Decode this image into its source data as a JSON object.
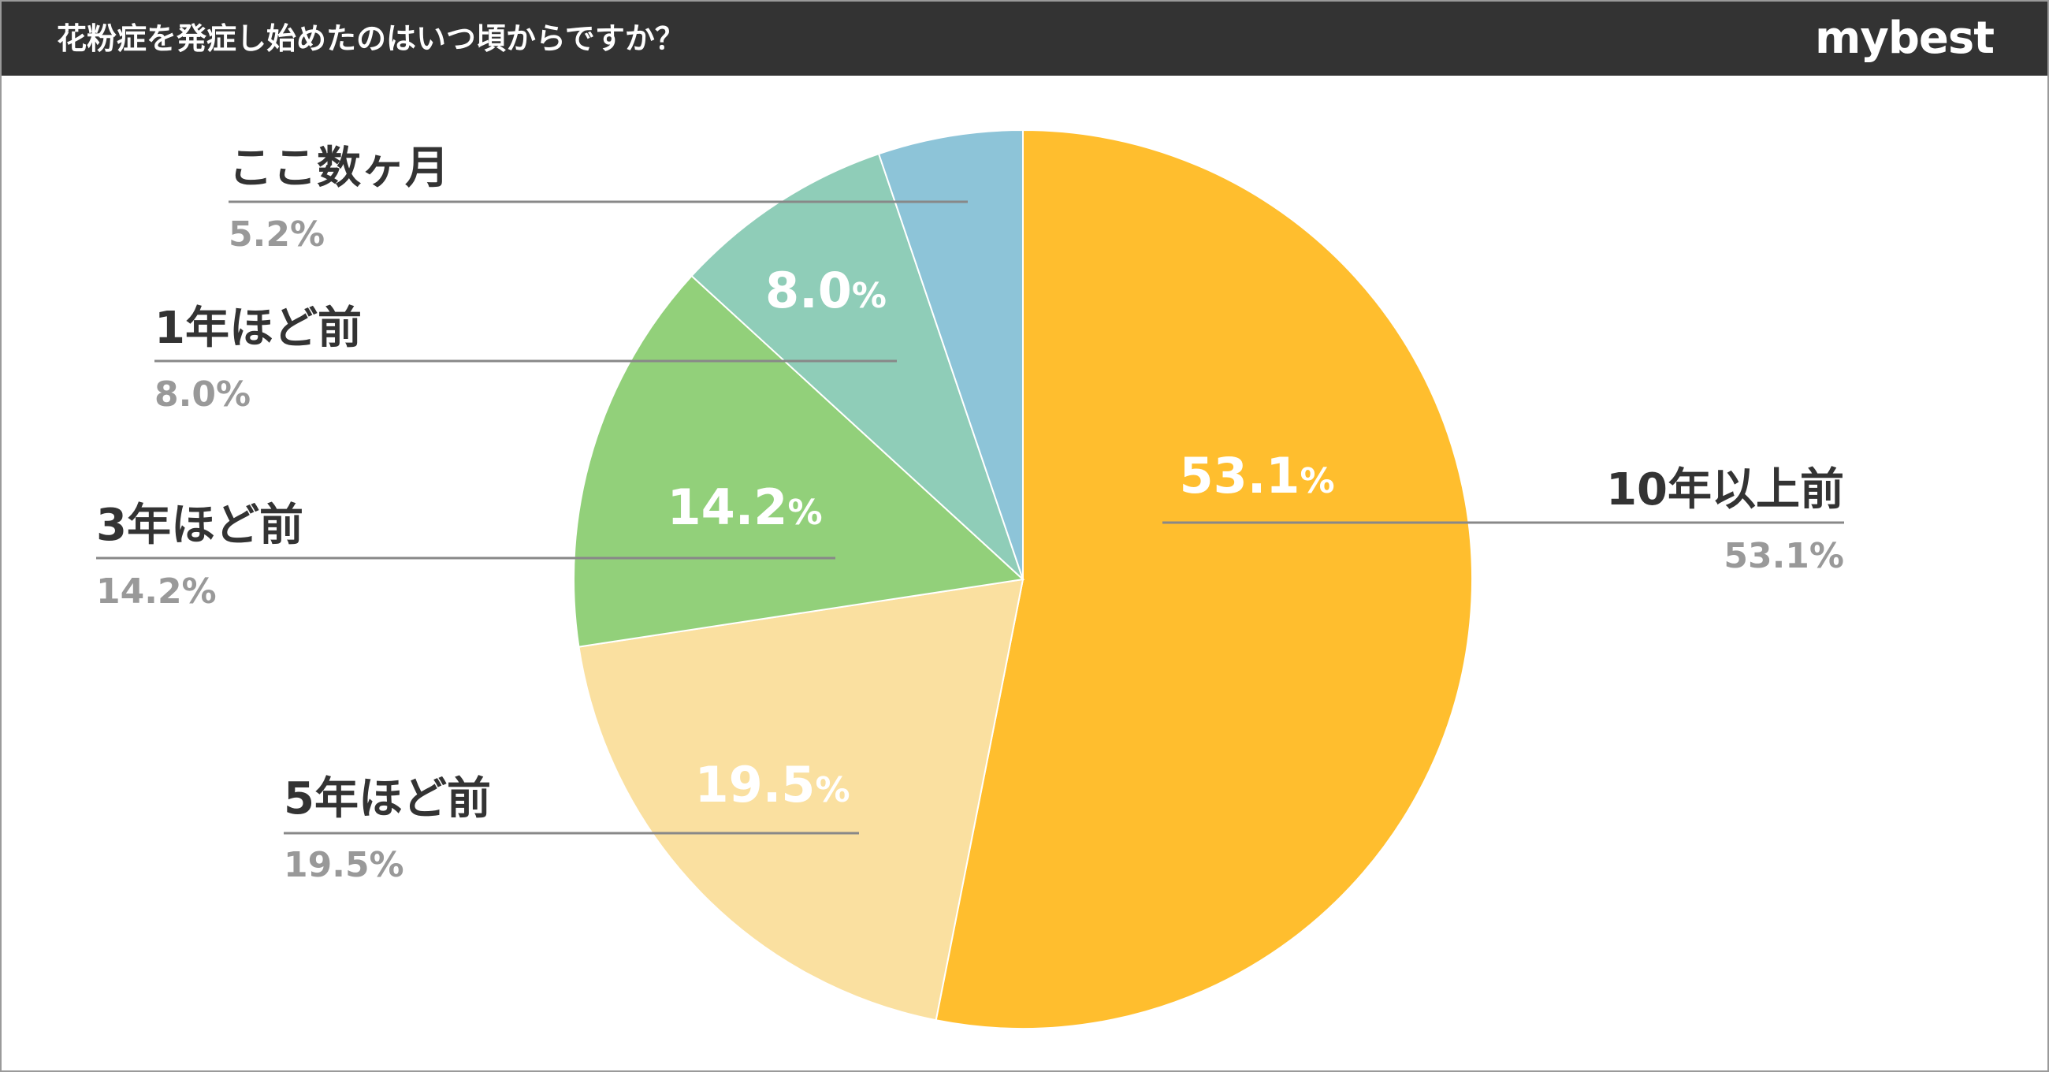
{
  "header": {
    "title": "花粉症を発症し始めたのはいつ頃からですか？",
    "brand": "mybest",
    "background": "#333333"
  },
  "chart_data": {
    "type": "pie",
    "title": "花粉症を発症し始めたのはいつ頃からですか？",
    "slices": [
      {
        "label": "10年以上前",
        "value": 53.1,
        "value_label": "53.1%",
        "color": "#FFBE2E"
      },
      {
        "label": "5年ほど前",
        "value": 19.5,
        "value_label": "19.5%",
        "color": "#FAE0A0"
      },
      {
        "label": "3年ほど前",
        "value": 14.2,
        "value_label": "14.2%",
        "color": "#92D07A"
      },
      {
        "label": "1年ほど前",
        "value": 8.0,
        "value_label": "8.0%",
        "color": "#8FCDB8"
      },
      {
        "label": "ここ数ヶ月",
        "value": 5.2,
        "value_label": "5.2%",
        "color": "#8DC4D8"
      }
    ],
    "start_angle": "12 o'clock",
    "direction": "clockwise",
    "legend": "none (callout labels)"
  }
}
